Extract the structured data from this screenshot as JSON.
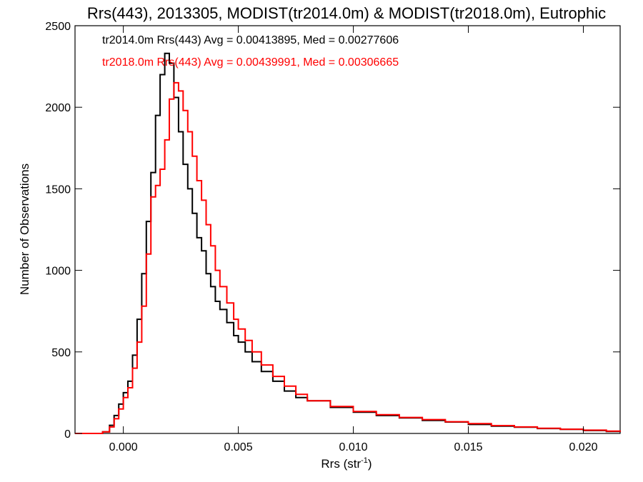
{
  "chart_data": {
    "type": "line",
    "title": "Rrs(443), 2013305, MODIST(tr2014.0m) & MODIST(tr2018.0m), Eutrophic",
    "xlabel_base": "Rrs (str",
    "xlabel_sup": "-1",
    "xlabel_close": ")",
    "ylabel": "Number of Observations",
    "xlim": [
      -0.0021,
      0.0216
    ],
    "ylim": [
      0,
      2500
    ],
    "x_ticks": [
      0.0,
      0.005,
      0.01,
      0.015,
      0.02
    ],
    "x_tick_labels": [
      "0.000",
      "0.005",
      "0.010",
      "0.015",
      "0.020"
    ],
    "y_ticks": [
      0,
      500,
      1000,
      1500,
      2000,
      2500
    ],
    "y_tick_labels": [
      "0",
      "500",
      "1000",
      "1500",
      "2000",
      "2500"
    ],
    "grid": false,
    "legend_placement": "top-left",
    "series": [
      {
        "name": "tr2014.0m",
        "legend_text": "tr2014.0m Rrs(443) Avg = 0.00413895, Med = 0.00277606",
        "color": "#000000",
        "x": [
          -0.0021,
          -0.0015,
          -0.0009,
          -0.0006,
          -0.0004,
          -0.0002,
          0.0,
          0.0002,
          0.0004,
          0.0006,
          0.0008,
          0.001,
          0.0012,
          0.0014,
          0.0016,
          0.0018,
          0.002,
          0.0022,
          0.0024,
          0.0026,
          0.0028,
          0.003,
          0.0032,
          0.0034,
          0.0036,
          0.0038,
          0.004,
          0.0042,
          0.0045,
          0.0048,
          0.005,
          0.0053,
          0.0056,
          0.006,
          0.0065,
          0.007,
          0.0075,
          0.008,
          0.009,
          0.01,
          0.011,
          0.012,
          0.013,
          0.014,
          0.015,
          0.016,
          0.017,
          0.018,
          0.019,
          0.02,
          0.021,
          0.0216
        ],
        "y": [
          0,
          0,
          10,
          50,
          110,
          180,
          250,
          320,
          480,
          700,
          980,
          1300,
          1600,
          1950,
          2200,
          2330,
          2270,
          2060,
          1850,
          1650,
          1500,
          1350,
          1200,
          1120,
          980,
          900,
          810,
          760,
          680,
          600,
          560,
          500,
          440,
          380,
          320,
          260,
          220,
          200,
          160,
          130,
          110,
          95,
          80,
          70,
          55,
          45,
          38,
          30,
          25,
          18,
          12,
          8
        ]
      },
      {
        "name": "tr2018.0m",
        "legend_text": "tr2018.0m Rrs(443) Avg = 0.00439991, Med = 0.00306665",
        "color": "#ff0000",
        "x": [
          -0.0021,
          -0.0015,
          -0.0009,
          -0.0006,
          -0.0004,
          -0.0002,
          0.0,
          0.0002,
          0.0004,
          0.0006,
          0.0008,
          0.001,
          0.0012,
          0.0014,
          0.0016,
          0.0018,
          0.002,
          0.0022,
          0.0024,
          0.0026,
          0.0028,
          0.003,
          0.0032,
          0.0034,
          0.0036,
          0.0038,
          0.004,
          0.0042,
          0.0045,
          0.0048,
          0.005,
          0.0053,
          0.0056,
          0.006,
          0.0065,
          0.007,
          0.0075,
          0.008,
          0.009,
          0.01,
          0.011,
          0.012,
          0.013,
          0.014,
          0.015,
          0.016,
          0.017,
          0.018,
          0.019,
          0.02,
          0.021,
          0.0216
        ],
        "y": [
          0,
          0,
          10,
          40,
          90,
          150,
          220,
          280,
          400,
          560,
          780,
          1100,
          1450,
          1520,
          1620,
          1800,
          2050,
          2150,
          2100,
          1980,
          1850,
          1700,
          1550,
          1430,
          1280,
          1150,
          1000,
          900,
          800,
          700,
          640,
          570,
          500,
          420,
          350,
          290,
          240,
          200,
          165,
          135,
          115,
          98,
          85,
          72,
          60,
          48,
          40,
          32,
          26,
          20,
          14,
          10
        ]
      }
    ]
  }
}
